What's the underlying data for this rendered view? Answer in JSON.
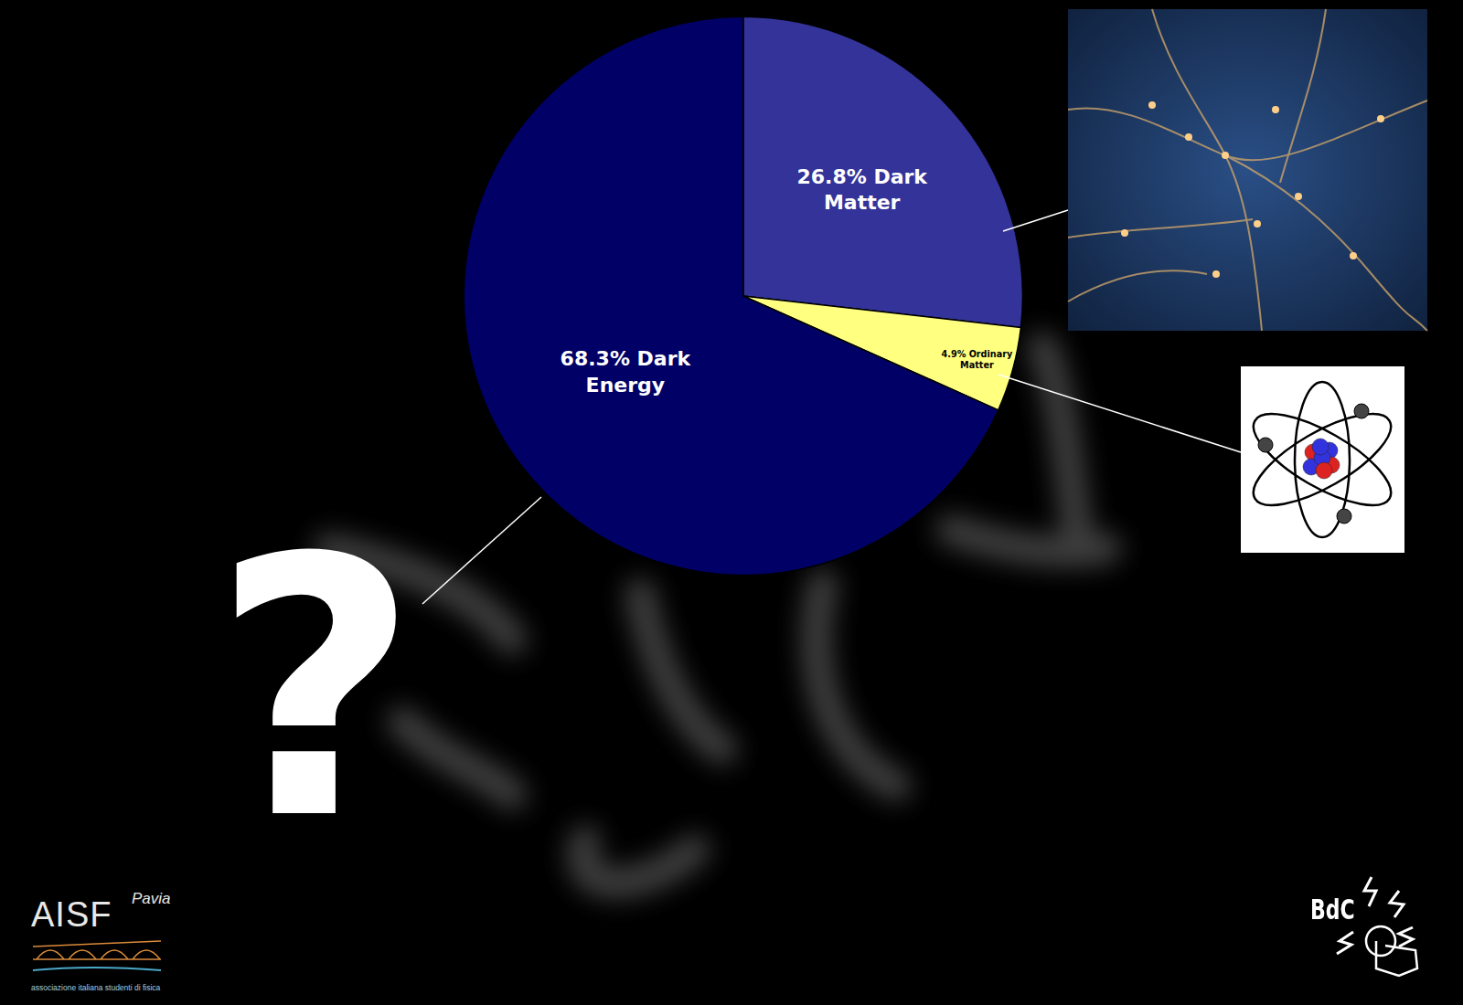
{
  "chart_data": {
    "type": "pie",
    "values": [
      26.8,
      4.9,
      68.3
    ],
    "value_labels": [
      "26.8% Dark Matter",
      "4.9% Ordinary Matter",
      "68.3% Dark Energy"
    ],
    "colors": [
      "#333399",
      "#ffff80",
      "#000066"
    ],
    "data_labels": true,
    "annotations": [
      "?"
    ]
  },
  "logos": {
    "left": {
      "text": "AISF",
      "subtext": "Pavia",
      "caption": "associazione italiana studenti di fisica"
    },
    "right": {
      "text": "BdC"
    }
  }
}
